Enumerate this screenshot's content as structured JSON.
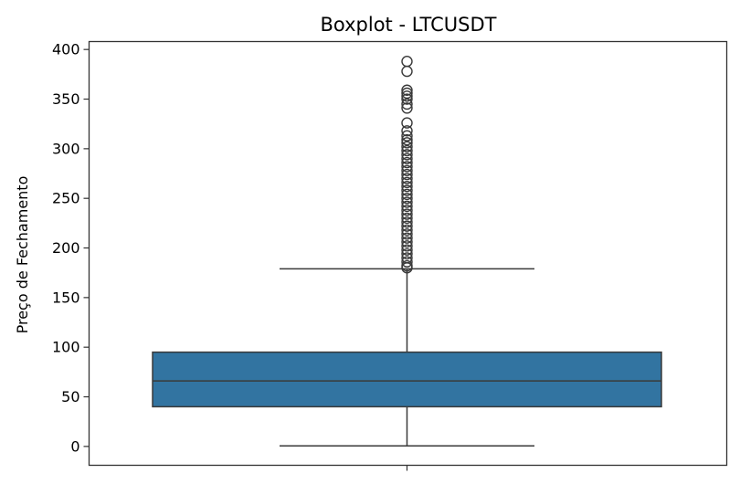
{
  "chart_data": {
    "type": "box",
    "title": "Boxplot - LTCUSDT",
    "xlabel": "",
    "ylabel": "Preço de Fechamento",
    "ylim": [
      -19,
      408
    ],
    "yticks": [
      0,
      50,
      100,
      150,
      200,
      250,
      300,
      350,
      400
    ],
    "grid": false,
    "series": [
      {
        "color": "#3274a1",
        "whisker_low": 0.5,
        "q1": 40,
        "median": 66,
        "q3": 95,
        "whisker_high": 179,
        "outliers": [
          388,
          378,
          359,
          356,
          353,
          350,
          345,
          341,
          326,
          318,
          313,
          309,
          306,
          302,
          298,
          294,
          290,
          286,
          282,
          278,
          274,
          270,
          266,
          262,
          258,
          254,
          250,
          246,
          242,
          238,
          234,
          230,
          226,
          222,
          218,
          214,
          210,
          206,
          202,
          198,
          194,
          190,
          186,
          182,
          180
        ]
      }
    ]
  }
}
